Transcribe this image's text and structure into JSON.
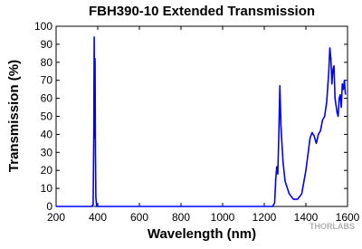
{
  "chart_data": {
    "type": "line",
    "title": "FBH390-10 Extended Transmission",
    "x_label": "Wavelength (nm)",
    "y_label": "Transmission (%)",
    "watermark": "THORLABS",
    "x": [
      200,
      370,
      378,
      381,
      383,
      385,
      387,
      389,
      391,
      395,
      1240,
      1250,
      1255,
      1260,
      1265,
      1270,
      1275,
      1280,
      1290,
      1300,
      1320,
      1340,
      1360,
      1380,
      1400,
      1420,
      1430,
      1440,
      1450,
      1460,
      1470,
      1480,
      1490,
      1500,
      1510,
      1515,
      1520,
      1525,
      1530,
      1535,
      1540,
      1550,
      1555,
      1560,
      1565,
      1570,
      1575,
      1580,
      1585,
      1590
    ],
    "series": [
      {
        "name": "Transmission",
        "color": "#0000ff",
        "values": [
          0,
          0,
          1,
          40,
          94,
          38,
          82,
          30,
          5,
          0,
          0,
          2,
          15,
          22,
          18,
          40,
          67,
          45,
          25,
          14,
          7,
          4,
          4,
          7,
          20,
          38,
          41,
          39,
          35,
          40,
          42,
          48,
          50,
          58,
          75,
          88,
          82,
          68,
          76,
          78,
          60,
          52,
          50,
          60,
          62,
          55,
          68,
          65,
          70,
          62
        ]
      }
    ],
    "xlim": [
      200,
      1600
    ],
    "ylim": [
      0,
      100
    ],
    "xticks": [
      200,
      400,
      600,
      800,
      1000,
      1200,
      1400,
      1600
    ],
    "yticks": [
      0,
      10,
      20,
      30,
      40,
      50,
      60,
      70,
      80,
      90,
      100
    ],
    "grid": false
  }
}
